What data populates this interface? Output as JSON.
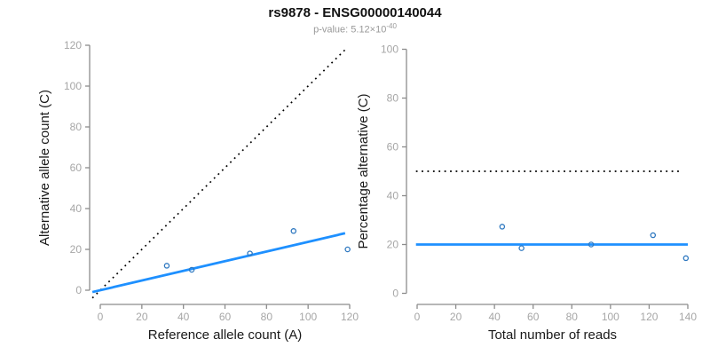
{
  "header": {
    "title": "rs9878 - ENSG00000140044",
    "subtitle_prefix": "p-value: 5.12×10",
    "subtitle_exponent": "-40"
  },
  "colors": {
    "fit_line": "#1E90FF",
    "point_stroke": "#2E78C0",
    "identity_line": "#000000",
    "axis": "#8C8C8C",
    "tick_label": "#A6A6A6",
    "axis_title": "#1A1A1A",
    "title": "#111111",
    "subtitle": "#999999"
  },
  "chart_data": [
    {
      "name": "allele-counts-scatter",
      "type": "scatter",
      "xlabel": "Reference allele count (A)",
      "ylabel": "Alternative allele count (C)",
      "xlim": [
        0,
        120
      ],
      "ylim": [
        0,
        120
      ],
      "xticks": [
        0,
        20,
        40,
        60,
        80,
        100,
        120
      ],
      "yticks": [
        0,
        20,
        40,
        60,
        80,
        100,
        120
      ],
      "grid": false,
      "legend": false,
      "points": [
        [
          32,
          12
        ],
        [
          44,
          10
        ],
        [
          72,
          18
        ],
        [
          93,
          29
        ],
        [
          119,
          20
        ]
      ],
      "lines": [
        {
          "name": "identity-line",
          "style": "dotted",
          "color": "#000000",
          "slope": 1,
          "intercept": 0
        },
        {
          "name": "fit-line",
          "style": "solid",
          "color": "#1E90FF",
          "slope": 0.237,
          "intercept": 0
        }
      ]
    },
    {
      "name": "percentage-alternative-scatter",
      "type": "scatter",
      "xlabel": "Total number of reads",
      "ylabel": "Percentage alternative (C)",
      "xlim": [
        0,
        140
      ],
      "ylim": [
        0,
        100
      ],
      "xticks": [
        0,
        20,
        40,
        60,
        80,
        100,
        120,
        140
      ],
      "yticks": [
        0,
        20,
        40,
        60,
        80,
        100
      ],
      "grid": false,
      "legend": false,
      "points": [
        [
          44,
          27.3
        ],
        [
          54,
          18.5
        ],
        [
          90,
          20
        ],
        [
          122,
          23.8
        ],
        [
          139,
          14.4
        ]
      ],
      "lines": [
        {
          "name": "expected-50-percent-line",
          "style": "dotted",
          "color": "#000000",
          "slope": 0,
          "intercept": 50
        },
        {
          "name": "mean-percentage-line",
          "style": "solid",
          "color": "#1E90FF",
          "slope": 0,
          "intercept": 20
        }
      ]
    }
  ]
}
